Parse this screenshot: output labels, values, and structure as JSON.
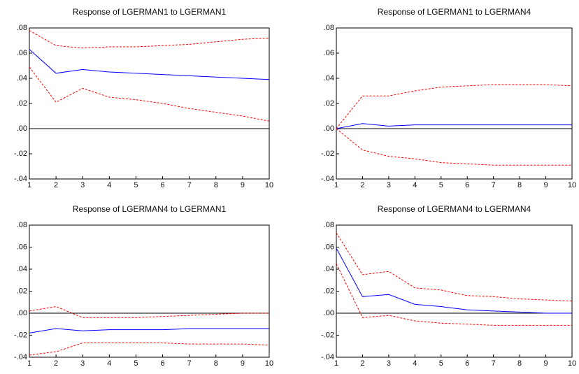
{
  "chart_data": [
    {
      "type": "line",
      "title": "Response of LGERMAN1 to LGERMAN1",
      "x": [
        1,
        2,
        3,
        4,
        5,
        6,
        7,
        8,
        9,
        10
      ],
      "xlim": [
        1,
        10
      ],
      "xticks": [
        1,
        2,
        3,
        4,
        5,
        6,
        7,
        8,
        9,
        10
      ],
      "ylim": [
        -0.04,
        0.08
      ],
      "yticks": [
        {
          "value": 0.08,
          "label": ".08"
        },
        {
          "value": 0.06,
          "label": ".06"
        },
        {
          "value": 0.04,
          "label": ".04"
        },
        {
          "value": 0.02,
          "label": ".02"
        },
        {
          "value": 0,
          "label": ".00"
        },
        {
          "value": -0.02,
          "label": "-.02"
        },
        {
          "value": -0.04,
          "label": "-.04"
        }
      ],
      "series": [
        {
          "color": "#0000ff",
          "style": "solid",
          "values": [
            0.063,
            0.044,
            0.047,
            0.045,
            0.044,
            0.043,
            0.042,
            0.041,
            0.04,
            0.039
          ]
        },
        {
          "color": "#ff0000",
          "style": "dashed",
          "values": [
            0.078,
            0.066,
            0.064,
            0.065,
            0.065,
            0.066,
            0.067,
            0.069,
            0.071,
            0.072
          ]
        },
        {
          "color": "#ff0000",
          "style": "dashed",
          "values": [
            0.049,
            0.021,
            0.032,
            0.025,
            0.023,
            0.02,
            0.016,
            0.013,
            0.01,
            0.006
          ]
        }
      ]
    },
    {
      "type": "line",
      "title": "Response of LGERMAN1 to LGERMAN4",
      "x": [
        1,
        2,
        3,
        4,
        5,
        6,
        7,
        8,
        9,
        10
      ],
      "xlim": [
        1,
        10
      ],
      "xticks": [
        1,
        2,
        3,
        4,
        5,
        6,
        7,
        8,
        9,
        10
      ],
      "ylim": [
        -0.04,
        0.08
      ],
      "yticks": [
        {
          "value": 0.08,
          "label": ".08"
        },
        {
          "value": 0.06,
          "label": ".06"
        },
        {
          "value": 0.04,
          "label": ".04"
        },
        {
          "value": 0.02,
          "label": ".02"
        },
        {
          "value": 0,
          "label": ".00"
        },
        {
          "value": -0.02,
          "label": "-.02"
        },
        {
          "value": -0.04,
          "label": "-.04"
        }
      ],
      "series": [
        {
          "color": "#0000ff",
          "style": "solid",
          "values": [
            0,
            0.004,
            0.002,
            0.003,
            0.003,
            0.003,
            0.003,
            0.003,
            0.003,
            0.003
          ]
        },
        {
          "color": "#ff0000",
          "style": "dashed",
          "values": [
            0,
            0.026,
            0.026,
            0.03,
            0.033,
            0.034,
            0.035,
            0.035,
            0.035,
            0.034
          ]
        },
        {
          "color": "#ff0000",
          "style": "dashed",
          "values": [
            0,
            -0.017,
            -0.022,
            -0.024,
            -0.027,
            -0.028,
            -0.029,
            -0.029,
            -0.029,
            -0.029
          ]
        }
      ]
    },
    {
      "type": "line",
      "title": "Response of LGERMAN4 to LGERMAN1",
      "x": [
        1,
        2,
        3,
        4,
        5,
        6,
        7,
        8,
        9,
        10
      ],
      "xlim": [
        1,
        10
      ],
      "xticks": [
        1,
        2,
        3,
        4,
        5,
        6,
        7,
        8,
        9,
        10
      ],
      "ylim": [
        -0.04,
        0.08
      ],
      "yticks": [
        {
          "value": 0.08,
          "label": ".08"
        },
        {
          "value": 0.06,
          "label": ".06"
        },
        {
          "value": 0.04,
          "label": ".04"
        },
        {
          "value": 0.02,
          "label": ".02"
        },
        {
          "value": 0,
          "label": ".00"
        },
        {
          "value": -0.02,
          "label": "-.02"
        },
        {
          "value": -0.04,
          "label": "-.04"
        }
      ],
      "series": [
        {
          "color": "#0000ff",
          "style": "solid",
          "values": [
            -0.018,
            -0.014,
            -0.016,
            -0.015,
            -0.015,
            -0.015,
            -0.014,
            -0.014,
            -0.014,
            -0.014
          ]
        },
        {
          "color": "#ff0000",
          "style": "dashed",
          "values": [
            0.002,
            0.006,
            -0.004,
            -0.004,
            -0.004,
            -0.003,
            -0.002,
            -0.001,
            0,
            0
          ]
        },
        {
          "color": "#ff0000",
          "style": "dashed",
          "values": [
            -0.038,
            -0.035,
            -0.027,
            -0.027,
            -0.027,
            -0.027,
            -0.028,
            -0.028,
            -0.028,
            -0.029
          ]
        }
      ]
    },
    {
      "type": "line",
      "title": "Response of LGERMAN4 to LGERMAN4",
      "x": [
        1,
        2,
        3,
        4,
        5,
        6,
        7,
        8,
        9,
        10
      ],
      "xlim": [
        1,
        10
      ],
      "xticks": [
        1,
        2,
        3,
        4,
        5,
        6,
        7,
        8,
        9,
        10
      ],
      "ylim": [
        -0.04,
        0.08
      ],
      "yticks": [
        {
          "value": 0.08,
          "label": ".08"
        },
        {
          "value": 0.06,
          "label": ".06"
        },
        {
          "value": 0.04,
          "label": ".04"
        },
        {
          "value": 0.02,
          "label": ".02"
        },
        {
          "value": 0,
          "label": ".00"
        },
        {
          "value": -0.02,
          "label": "-.02"
        },
        {
          "value": -0.04,
          "label": "-.04"
        }
      ],
      "series": [
        {
          "color": "#0000ff",
          "style": "solid",
          "values": [
            0.059,
            0.015,
            0.017,
            0.008,
            0.006,
            0.003,
            0.002,
            0.001,
            0,
            0
          ]
        },
        {
          "color": "#ff0000",
          "style": "dashed",
          "values": [
            0.073,
            0.035,
            0.038,
            0.023,
            0.021,
            0.016,
            0.015,
            0.013,
            0.012,
            0.011
          ]
        },
        {
          "color": "#ff0000",
          "style": "dashed",
          "values": [
            0.045,
            -0.004,
            -0.002,
            -0.007,
            -0.009,
            -0.01,
            -0.011,
            -0.011,
            -0.011,
            -0.011
          ]
        }
      ]
    }
  ]
}
